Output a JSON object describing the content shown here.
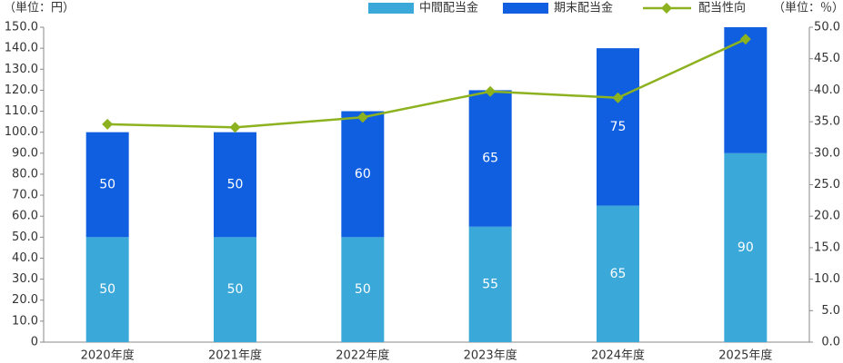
{
  "chart_data": {
    "type": "bar_line",
    "y_unit_label": "（単位：円）",
    "y2_unit_label": "（単位：％）",
    "categories": [
      "2020年度",
      "2021年度",
      "2022年度",
      "2023年度",
      "2024年度",
      "2025年度"
    ],
    "series": [
      {
        "name": "中間配当金",
        "color": "#3aa8d8",
        "values": [
          50,
          50,
          50,
          55,
          65,
          90
        ]
      },
      {
        "name": "期末配当金",
        "color": "#0f5fe0",
        "values": [
          50,
          50,
          60,
          65,
          75,
          60
        ],
        "value_labels": [
          "50",
          "50",
          "60",
          "65",
          "75",
          null
        ]
      },
      {
        "name": "配当性向",
        "color": "#8db21f",
        "type": "line",
        "axis": "y2",
        "values": [
          34.6,
          34.1,
          35.7,
          39.8,
          38.8,
          48.1
        ]
      }
    ],
    "ylim": [
      0,
      150
    ],
    "yticks": [
      0,
      {
        "value": 10,
        "label": "10.0"
      },
      {
        "value": 20,
        "label": "20.0"
      },
      {
        "value": 30,
        "label": "30.0"
      },
      {
        "value": 40,
        "label": "40.0"
      },
      {
        "value": 50,
        "label": "50.0"
      },
      {
        "value": 60,
        "label": "60.0"
      },
      {
        "value": 70,
        "label": "70.0"
      },
      {
        "value": 80,
        "label": "80.0"
      },
      {
        "value": 90,
        "label": "90.0"
      },
      {
        "value": 100,
        "label": "100.0"
      },
      {
        "value": 110,
        "label": "110.0"
      },
      {
        "value": 120,
        "label": "120.0"
      },
      {
        "value": 130,
        "label": "130.0"
      },
      {
        "value": 140,
        "label": "140.0"
      },
      {
        "value": 150,
        "label": "150.0"
      }
    ],
    "y2lim": [
      0,
      50
    ],
    "y2ticks": [
      {
        "value": 0,
        "label": "0.0"
      },
      {
        "value": 5,
        "label": "5.0"
      },
      {
        "value": 10,
        "label": "10.0"
      },
      {
        "value": 15,
        "label": "15.0"
      },
      {
        "value": 20,
        "label": "20.0"
      },
      {
        "value": 25,
        "label": "25.0"
      },
      {
        "value": 30,
        "label": "30.0"
      },
      {
        "value": 35,
        "label": "35.0"
      },
      {
        "value": 40,
        "label": "40.0"
      },
      {
        "value": 45,
        "label": "45.0"
      },
      {
        "value": 50,
        "label": "50.0"
      }
    ],
    "legend": "top-right"
  }
}
